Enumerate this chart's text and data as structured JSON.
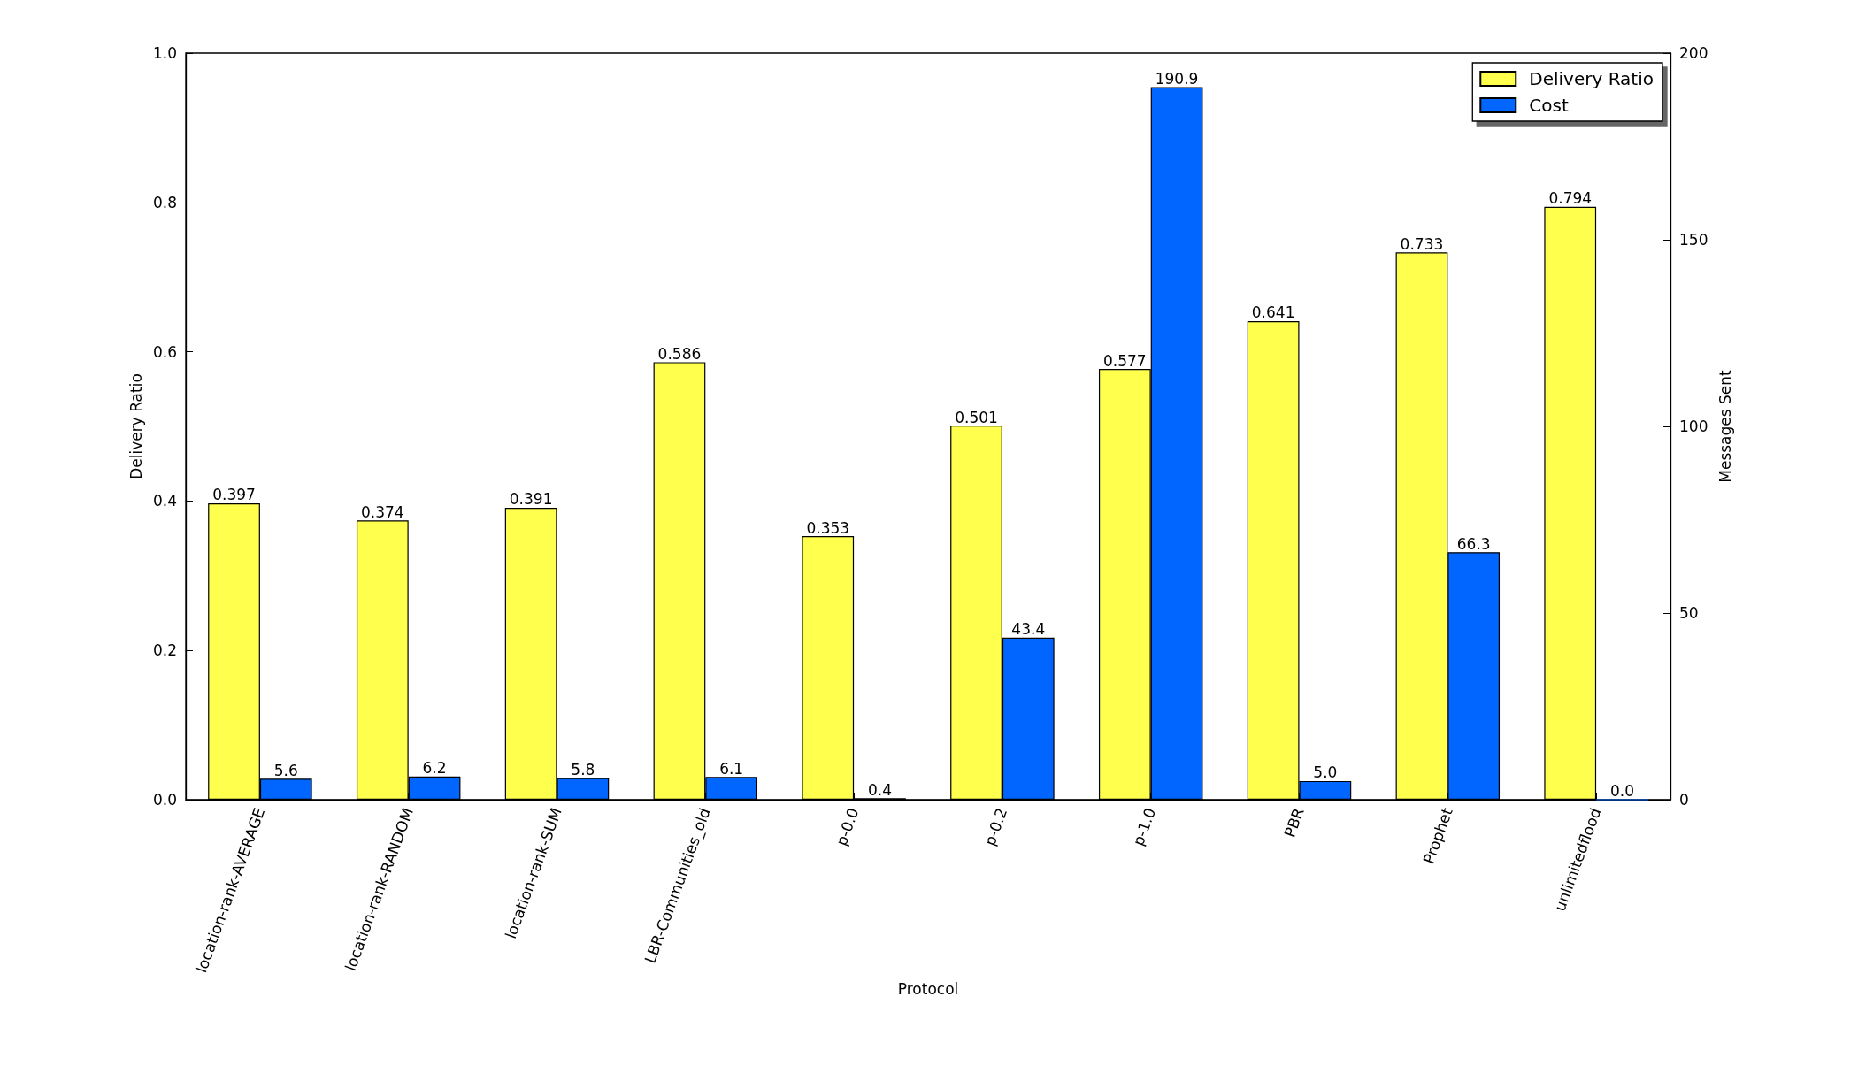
{
  "chart_data": {
    "type": "bar",
    "xlabel": "Protocol",
    "ylabel": "Delivery Ratio",
    "y2label": "Messages Sent",
    "categories": [
      "location-rank-AVERAGE",
      "location-rank-RANDOM",
      "location-rank-SUM",
      "LBR-Communities_old",
      "p-0.0",
      "p-0.2",
      "p-1.0",
      "PBR",
      "Prophet",
      "unlimitedflood"
    ],
    "series": [
      {
        "name": "Delivery Ratio",
        "color": "#ffff4d",
        "values": [
          0.397,
          0.374,
          0.391,
          0.586,
          0.353,
          0.501,
          0.577,
          0.641,
          0.733,
          0.794
        ],
        "value_labels": [
          "0.397",
          "0.374",
          "0.391",
          "0.586",
          "0.353",
          "0.501",
          "0.577",
          "0.641",
          "0.733",
          "0.794"
        ]
      },
      {
        "name": "Cost",
        "color": "#0066ff",
        "axis": "y2",
        "values": [
          5.6,
          6.2,
          5.8,
          6.1,
          0.4,
          43.4,
          190.9,
          5.0,
          66.3,
          0.0
        ],
        "value_labels": [
          "5.6",
          "6.2",
          "5.8",
          "6.1",
          "0.4",
          "43.4",
          "190.9",
          "5.0",
          "66.3",
          "0.0"
        ]
      }
    ],
    "ylim": [
      0,
      1
    ],
    "yticks": [
      {
        "value": 0,
        "label": "0.0"
      },
      0.2,
      0.4,
      0.6,
      0.8,
      {
        "value": 1,
        "label": "1.0"
      }
    ],
    "y2lim": [
      0,
      200
    ],
    "y2ticks": [
      0,
      50,
      100,
      150,
      200
    ],
    "grid": false,
    "legend": "top right"
  }
}
